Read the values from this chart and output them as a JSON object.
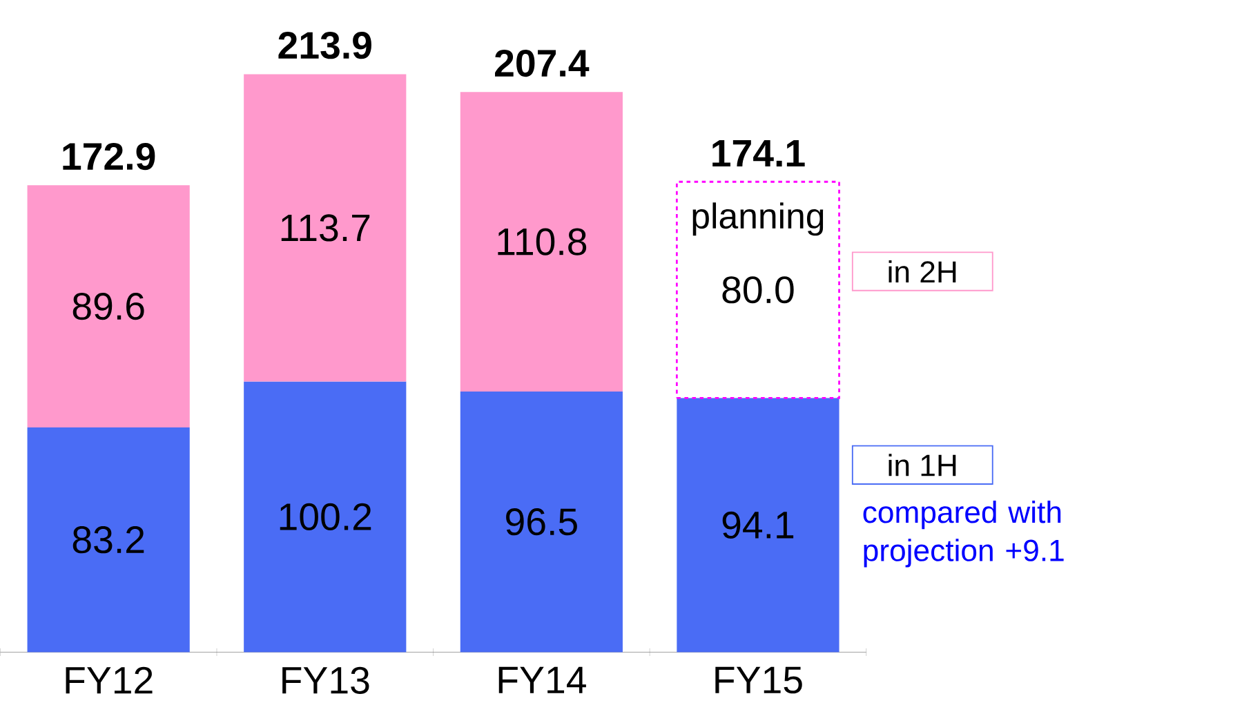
{
  "chart_data": {
    "type": "bar",
    "stacked": true,
    "categories": [
      "FY12",
      "FY13",
      "FY14",
      "FY15"
    ],
    "series": [
      {
        "name": "in 1H",
        "color": "#4a6cf5",
        "values": [
          83.2,
          100.2,
          96.5,
          94.1
        ],
        "value_labels": [
          "83.2",
          "100.2",
          "96.5",
          "94.1"
        ]
      },
      {
        "name": "in 2H",
        "color": "#ff99cc",
        "values": [
          89.6,
          113.7,
          110.8,
          null
        ],
        "value_labels": [
          "89.6",
          "113.7",
          "110.8",
          null
        ]
      },
      {
        "color": "#ff00ff",
        "line_style": "dashed",
        "values": [
          null,
          null,
          null,
          80.0
        ],
        "value_labels": [
          null,
          null,
          null,
          "80.0"
        ]
      }
    ],
    "totals": [
      "172.9",
      "213.9",
      "207.4",
      "174.1"
    ],
    "legend": "right",
    "annotations": [
      "planning",
      "compared with projection +9.1"
    ]
  }
}
